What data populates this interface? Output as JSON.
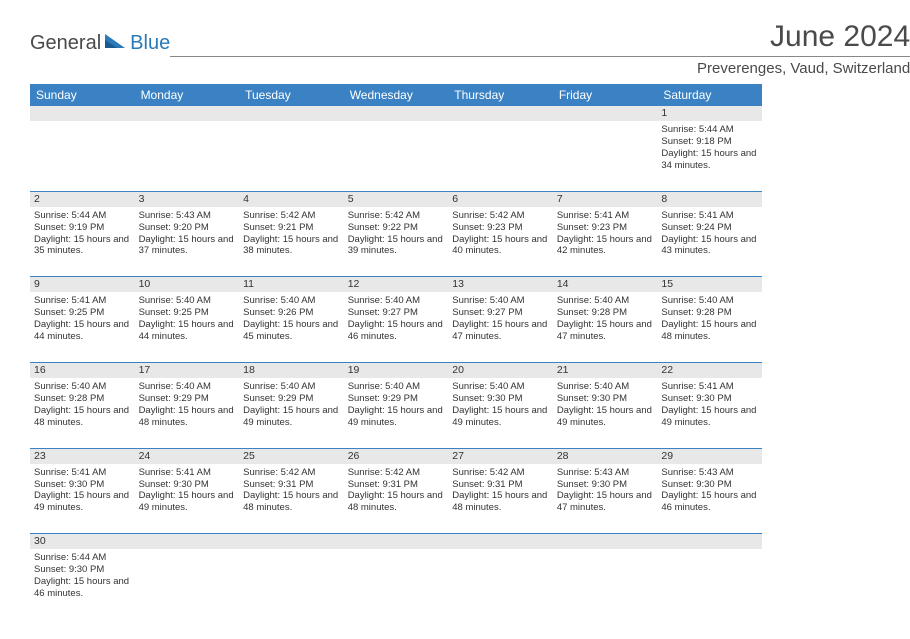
{
  "logo": {
    "part1": "General",
    "part2": "Blue"
  },
  "title": "June 2024",
  "location": "Preverenges, Vaud, Switzerland",
  "colors": {
    "header_bg": "#3b82c4",
    "header_text": "#ffffff",
    "daynum_bg": "#e8e8e8",
    "border": "#3b82c4",
    "logo_gray": "#4a4a4a",
    "logo_blue": "#2a7ab8"
  },
  "day_headers": [
    "Sunday",
    "Monday",
    "Tuesday",
    "Wednesday",
    "Thursday",
    "Friday",
    "Saturday"
  ],
  "weeks": [
    {
      "nums": [
        "",
        "",
        "",
        "",
        "",
        "",
        "1"
      ],
      "cells": [
        null,
        null,
        null,
        null,
        null,
        null,
        {
          "sunrise": "5:44 AM",
          "sunset": "9:18 PM",
          "daylight": "15 hours and 34 minutes."
        }
      ]
    },
    {
      "nums": [
        "2",
        "3",
        "4",
        "5",
        "6",
        "7",
        "8"
      ],
      "cells": [
        {
          "sunrise": "5:44 AM",
          "sunset": "9:19 PM",
          "daylight": "15 hours and 35 minutes."
        },
        {
          "sunrise": "5:43 AM",
          "sunset": "9:20 PM",
          "daylight": "15 hours and 37 minutes."
        },
        {
          "sunrise": "5:42 AM",
          "sunset": "9:21 PM",
          "daylight": "15 hours and 38 minutes."
        },
        {
          "sunrise": "5:42 AM",
          "sunset": "9:22 PM",
          "daylight": "15 hours and 39 minutes."
        },
        {
          "sunrise": "5:42 AM",
          "sunset": "9:23 PM",
          "daylight": "15 hours and 40 minutes."
        },
        {
          "sunrise": "5:41 AM",
          "sunset": "9:23 PM",
          "daylight": "15 hours and 42 minutes."
        },
        {
          "sunrise": "5:41 AM",
          "sunset": "9:24 PM",
          "daylight": "15 hours and 43 minutes."
        }
      ]
    },
    {
      "nums": [
        "9",
        "10",
        "11",
        "12",
        "13",
        "14",
        "15"
      ],
      "cells": [
        {
          "sunrise": "5:41 AM",
          "sunset": "9:25 PM",
          "daylight": "15 hours and 44 minutes."
        },
        {
          "sunrise": "5:40 AM",
          "sunset": "9:25 PM",
          "daylight": "15 hours and 44 minutes."
        },
        {
          "sunrise": "5:40 AM",
          "sunset": "9:26 PM",
          "daylight": "15 hours and 45 minutes."
        },
        {
          "sunrise": "5:40 AM",
          "sunset": "9:27 PM",
          "daylight": "15 hours and 46 minutes."
        },
        {
          "sunrise": "5:40 AM",
          "sunset": "9:27 PM",
          "daylight": "15 hours and 47 minutes."
        },
        {
          "sunrise": "5:40 AM",
          "sunset": "9:28 PM",
          "daylight": "15 hours and 47 minutes."
        },
        {
          "sunrise": "5:40 AM",
          "sunset": "9:28 PM",
          "daylight": "15 hours and 48 minutes."
        }
      ]
    },
    {
      "nums": [
        "16",
        "17",
        "18",
        "19",
        "20",
        "21",
        "22"
      ],
      "cells": [
        {
          "sunrise": "5:40 AM",
          "sunset": "9:28 PM",
          "daylight": "15 hours and 48 minutes."
        },
        {
          "sunrise": "5:40 AM",
          "sunset": "9:29 PM",
          "daylight": "15 hours and 48 minutes."
        },
        {
          "sunrise": "5:40 AM",
          "sunset": "9:29 PM",
          "daylight": "15 hours and 49 minutes."
        },
        {
          "sunrise": "5:40 AM",
          "sunset": "9:29 PM",
          "daylight": "15 hours and 49 minutes."
        },
        {
          "sunrise": "5:40 AM",
          "sunset": "9:30 PM",
          "daylight": "15 hours and 49 minutes."
        },
        {
          "sunrise": "5:40 AM",
          "sunset": "9:30 PM",
          "daylight": "15 hours and 49 minutes."
        },
        {
          "sunrise": "5:41 AM",
          "sunset": "9:30 PM",
          "daylight": "15 hours and 49 minutes."
        }
      ]
    },
    {
      "nums": [
        "23",
        "24",
        "25",
        "26",
        "27",
        "28",
        "29"
      ],
      "cells": [
        {
          "sunrise": "5:41 AM",
          "sunset": "9:30 PM",
          "daylight": "15 hours and 49 minutes."
        },
        {
          "sunrise": "5:41 AM",
          "sunset": "9:30 PM",
          "daylight": "15 hours and 49 minutes."
        },
        {
          "sunrise": "5:42 AM",
          "sunset": "9:31 PM",
          "daylight": "15 hours and 48 minutes."
        },
        {
          "sunrise": "5:42 AM",
          "sunset": "9:31 PM",
          "daylight": "15 hours and 48 minutes."
        },
        {
          "sunrise": "5:42 AM",
          "sunset": "9:31 PM",
          "daylight": "15 hours and 48 minutes."
        },
        {
          "sunrise": "5:43 AM",
          "sunset": "9:30 PM",
          "daylight": "15 hours and 47 minutes."
        },
        {
          "sunrise": "5:43 AM",
          "sunset": "9:30 PM",
          "daylight": "15 hours and 46 minutes."
        }
      ]
    },
    {
      "nums": [
        "30",
        "",
        "",
        "",
        "",
        "",
        ""
      ],
      "cells": [
        {
          "sunrise": "5:44 AM",
          "sunset": "9:30 PM",
          "daylight": "15 hours and 46 minutes."
        },
        null,
        null,
        null,
        null,
        null,
        null
      ]
    }
  ],
  "labels": {
    "sunrise": "Sunrise: ",
    "sunset": "Sunset: ",
    "daylight": "Daylight: "
  }
}
